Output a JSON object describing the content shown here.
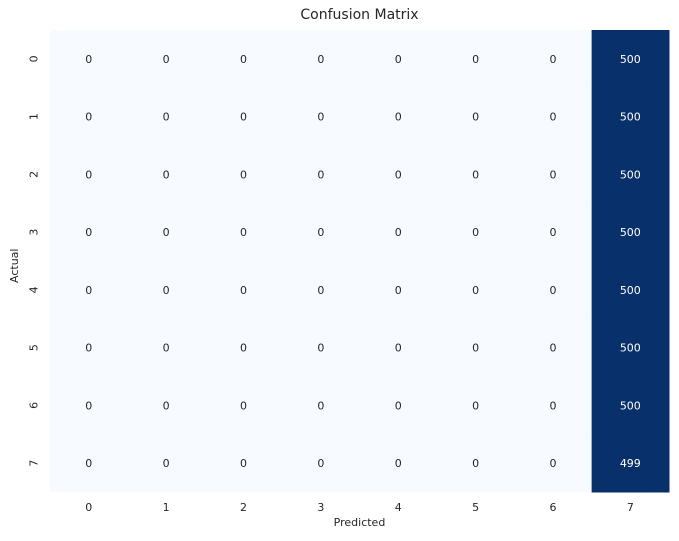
{
  "chart_data": {
    "type": "heatmap",
    "title": "Confusion Matrix",
    "xlabel": "Predicted",
    "ylabel": "Actual",
    "x_ticks": [
      "0",
      "1",
      "2",
      "3",
      "4",
      "5",
      "6",
      "7"
    ],
    "y_ticks": [
      "0",
      "1",
      "2",
      "3",
      "4",
      "5",
      "6",
      "7"
    ],
    "colormap": "Blues",
    "color_low": "#f7fbff",
    "color_high": "#08306b",
    "colorbar": false,
    "values": [
      [
        0,
        0,
        0,
        0,
        0,
        0,
        0,
        500
      ],
      [
        0,
        0,
        0,
        0,
        0,
        0,
        0,
        500
      ],
      [
        0,
        0,
        0,
        0,
        0,
        0,
        0,
        500
      ],
      [
        0,
        0,
        0,
        0,
        0,
        0,
        0,
        500
      ],
      [
        0,
        0,
        0,
        0,
        0,
        0,
        0,
        500
      ],
      [
        0,
        0,
        0,
        0,
        0,
        0,
        0,
        500
      ],
      [
        0,
        0,
        0,
        0,
        0,
        0,
        0,
        500
      ],
      [
        0,
        0,
        0,
        0,
        0,
        0,
        0,
        499
      ]
    ]
  }
}
